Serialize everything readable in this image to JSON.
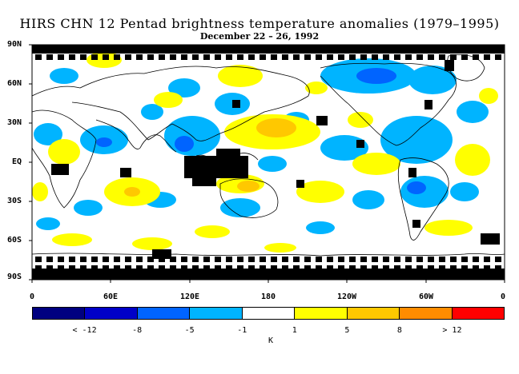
{
  "title": "HIRS CHN 12 Pentad brightness temperature anomalies (1979–1995)",
  "subtitle": "December 22 – 26, 1992",
  "lat_labels": [
    "90N",
    "60N",
    "30N",
    "EQ",
    "30S",
    "60S",
    "90S"
  ],
  "lon_labels": [
    "0",
    "60E",
    "120E",
    "180",
    "120W",
    "60W",
    "0"
  ],
  "legend": {
    "unit": "K",
    "colors": [
      "#000080",
      "#0000c8",
      "#0064ff",
      "#00b4ff",
      "#ffffff",
      "#ffff00",
      "#ffc800",
      "#ff8c00",
      "#ff0000"
    ],
    "tick_labels": [
      "< -12",
      "-8",
      "-5",
      "-1",
      "1",
      "5",
      "8",
      "> 12"
    ]
  },
  "chart_data": {
    "type": "heatmap",
    "title": "HIRS CHN 12 Pentad brightness temperature anomalies (1979–1995)",
    "subtitle": "December 22 – 26, 1992",
    "xlabel": "",
    "ylabel": "",
    "x_range": [
      0,
      360
    ],
    "y_range": [
      -90,
      90
    ],
    "colorbar_unit": "K",
    "colorbar_bins": [
      "< -12",
      "-12 to -8",
      "-8 to -5",
      "-5 to -1",
      "-1 to 1",
      "1 to 5",
      "5 to 8",
      "8 to 12",
      "> 12"
    ],
    "missing_data_color": "#000000"
  }
}
